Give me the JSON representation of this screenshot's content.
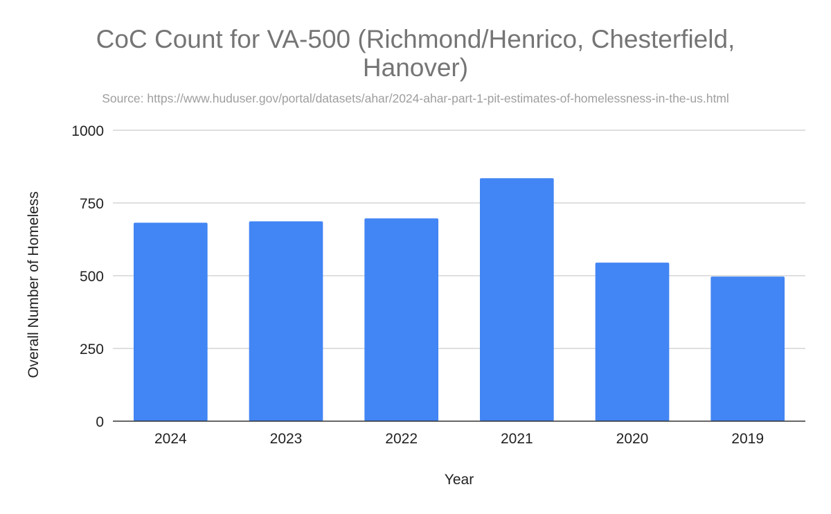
{
  "chart_data": {
    "type": "bar",
    "title": "CoC Count for VA-500 (Richmond/Henrico, Chesterfield, Hanover)",
    "title_lines": [
      "CoC Count for VA-500 (Richmond/Henrico, Chesterfield,",
      "Hanover)"
    ],
    "subtitle": "Source: https://www.huduser.gov/portal/datasets/ahar/2024-ahar-part-1-pit-estimates-of-homelessness-in-the-us.html",
    "xlabel": "Year",
    "ylabel": "Overall Number of Homeless",
    "categories": [
      "2024",
      "2023",
      "2022",
      "2021",
      "2020",
      "2019"
    ],
    "values": [
      682,
      687,
      697,
      835,
      545,
      497
    ],
    "ylim": [
      0,
      1000
    ],
    "yticks": [
      0,
      250,
      500,
      750,
      1000
    ],
    "grid": true,
    "legend": "none"
  },
  "colors": {
    "bar": "#4285f4",
    "grid": "#cccccc",
    "axis": "#333333",
    "title": "#757575",
    "subtitle": "#9e9e9e",
    "text": "#222222"
  }
}
